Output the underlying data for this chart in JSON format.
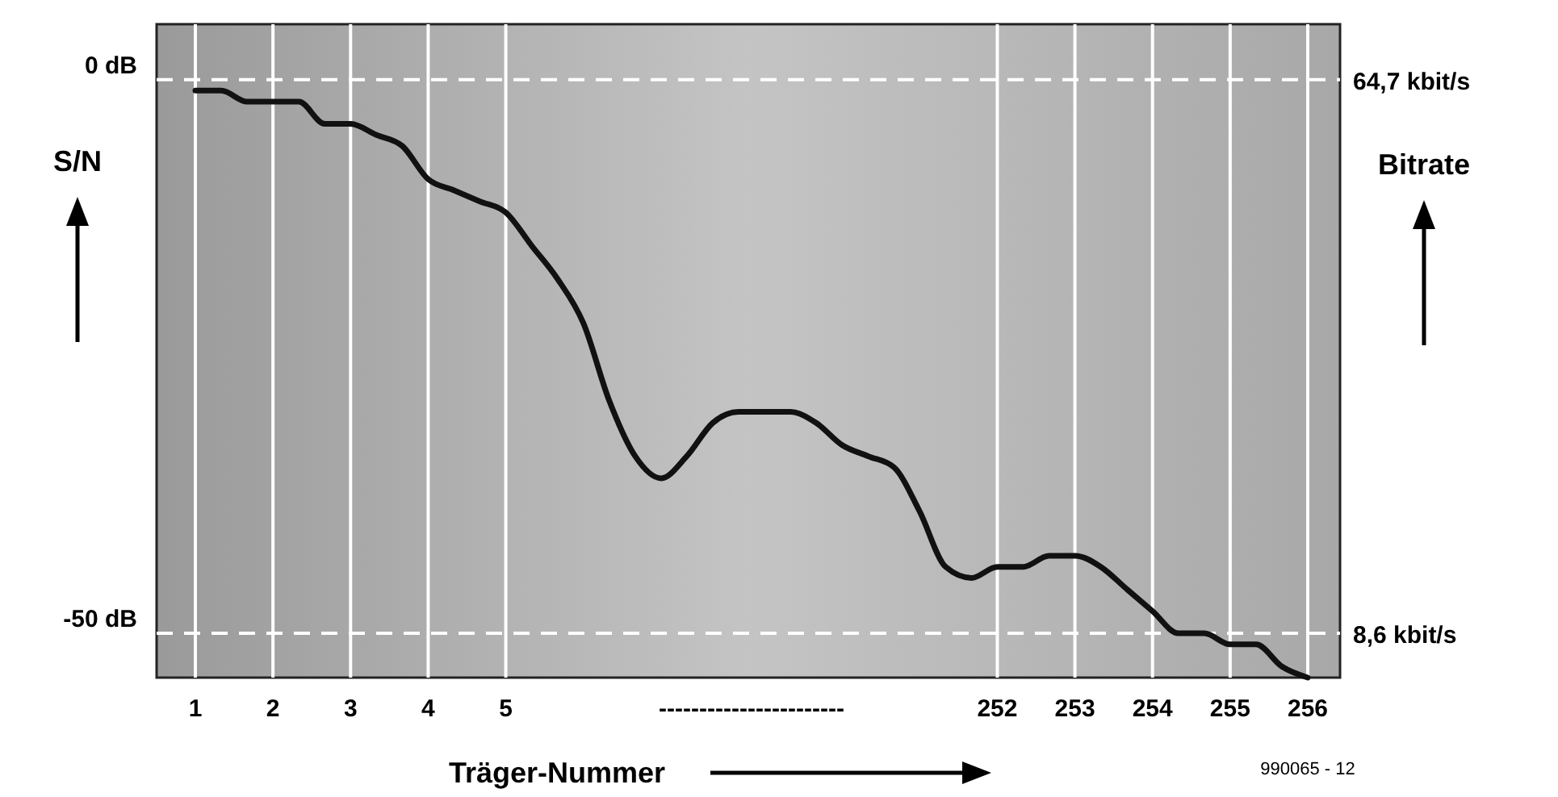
{
  "chart_data": {
    "type": "line",
    "xlabel": "Träger-Nummer",
    "ylabel": "S/N",
    "y2label": "Bitrate",
    "categories": [
      "1",
      null,
      null,
      "2",
      null,
      null,
      "3",
      null,
      null,
      "4",
      null,
      null,
      "5",
      null,
      null,
      null,
      null,
      null,
      null,
      null,
      null,
      null,
      null,
      null,
      null,
      null,
      null,
      null,
      null,
      null,
      null,
      "252",
      null,
      null,
      "253",
      null,
      null,
      "254",
      null,
      null,
      "255",
      null,
      null,
      "256"
    ],
    "series": [
      {
        "color": "#111111",
        "values": [
          -1,
          -1,
          -2,
          -2,
          -2,
          -4,
          -4,
          -5,
          -6,
          -9,
          -10,
          -11,
          -12,
          -15,
          -18,
          -22,
          -29,
          -34,
          -36,
          -34,
          -31,
          -30,
          -30,
          -30,
          -31,
          -33,
          -34,
          -35,
          -39,
          -44,
          -45,
          -44,
          -44,
          -43,
          -43,
          -44,
          -46,
          -48,
          -50,
          -50,
          -51,
          -51,
          -53,
          -54
        ]
      }
    ],
    "ylim": [
      -54,
      5
    ],
    "yticks": [
      {
        "value": 0,
        "label": "0 dB"
      },
      {
        "value": -50,
        "label": "-50 dB"
      }
    ],
    "y2lim": [
      4.1,
      70.3
    ],
    "y2ticks": [
      {
        "value": 64.7,
        "label": "64,7 kbit/s"
      },
      {
        "value": 8.6,
        "label": "8,6 kbit/s"
      }
    ],
    "grid": true,
    "marker": "none",
    "line_style": "solid",
    "annotations": [
      "-----------------------",
      "990065 - 12"
    ]
  }
}
